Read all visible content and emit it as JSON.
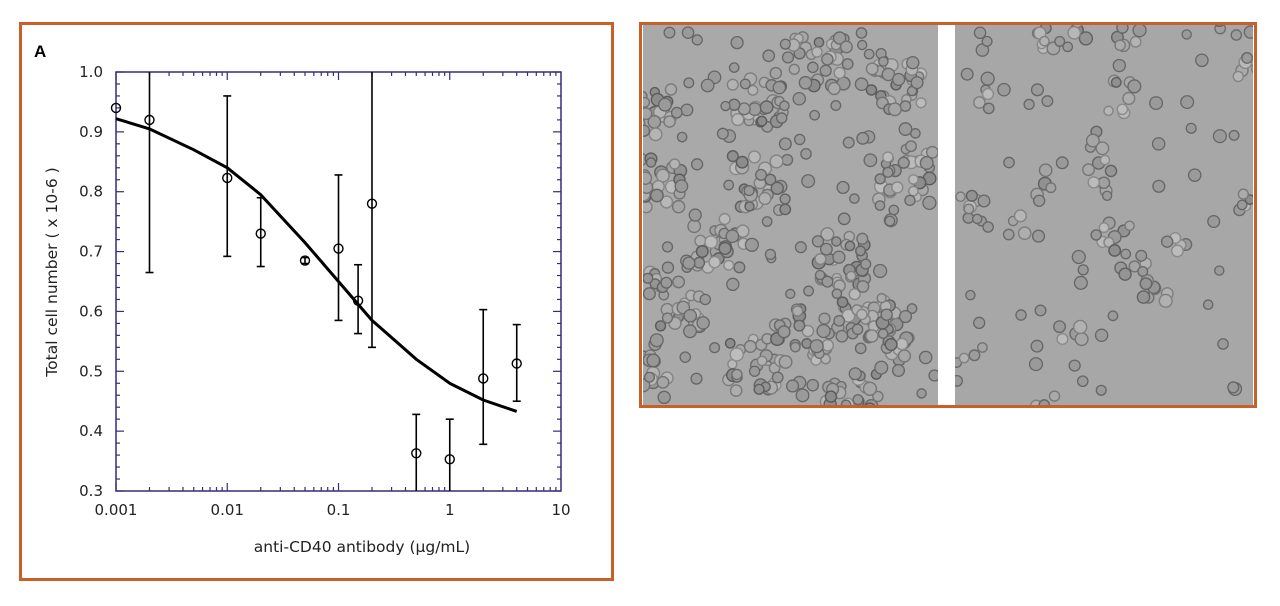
{
  "panel_label": "A",
  "chart_data": {
    "type": "scatter",
    "title": "",
    "xlabel": "anti-CD40 antibody (µg/mL)",
    "ylabel": "Total cell number ( x 10-6 )",
    "x_scale": "log",
    "xlim": [
      0.001,
      10
    ],
    "ylim": [
      0.3,
      1.0
    ],
    "x_ticks": [
      "0.001",
      "0.01",
      "0.1",
      "1",
      "10"
    ],
    "y_ticks": [
      "0.3",
      "0.4",
      "0.5",
      "0.6",
      "0.7",
      "0.8",
      "0.9",
      "1.0"
    ],
    "grid": false,
    "marker": "open-circle",
    "points": [
      {
        "x": 0.001,
        "y": 0.94,
        "err_low": null,
        "err_high": null
      },
      {
        "x": 0.002,
        "y": 0.92,
        "err_low": 0.665,
        "err_high": 1.0
      },
      {
        "x": 0.01,
        "y": 0.823,
        "err_low": 0.692,
        "err_high": 0.96
      },
      {
        "x": 0.02,
        "y": 0.73,
        "err_low": 0.675,
        "err_high": 0.79
      },
      {
        "x": 0.05,
        "y": 0.685,
        "err_low": 0.68,
        "err_high": 0.69
      },
      {
        "x": 0.1,
        "y": 0.705,
        "err_low": 0.585,
        "err_high": 0.828
      },
      {
        "x": 0.15,
        "y": 0.618,
        "err_low": 0.563,
        "err_high": 0.678
      },
      {
        "x": 0.2,
        "y": 0.78,
        "err_low": 0.54,
        "err_high": 1.0
      },
      {
        "x": 0.5,
        "y": 0.363,
        "err_low": 0.3,
        "err_high": 0.428
      },
      {
        "x": 1,
        "y": 0.353,
        "err_low": 0.3,
        "err_high": 0.42
      },
      {
        "x": 2,
        "y": 0.488,
        "err_low": 0.378,
        "err_high": 0.603
      },
      {
        "x": 4,
        "y": 0.513,
        "err_low": 0.45,
        "err_high": 0.578
      }
    ],
    "fit_curve": {
      "x": [
        0.001,
        0.002,
        0.005,
        0.01,
        0.02,
        0.05,
        0.1,
        0.2,
        0.5,
        1,
        2,
        4
      ],
      "y": [
        0.922,
        0.905,
        0.87,
        0.84,
        0.795,
        0.715,
        0.65,
        0.585,
        0.52,
        0.48,
        0.452,
        0.433
      ]
    }
  },
  "colors": {
    "frame": "#c8602a",
    "axis": "#3a2a7a",
    "data": "#000000"
  }
}
